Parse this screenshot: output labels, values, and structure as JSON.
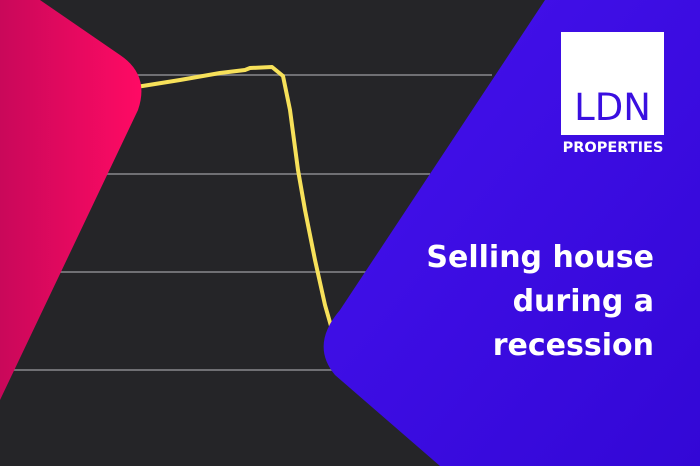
{
  "logo": {
    "mark": "LDN",
    "subtitle": "PROPERTIES"
  },
  "headline": "Selling house during a recession",
  "colors": {
    "background": "#252528",
    "pink": "#f0085e",
    "purple": "#3d0ee6",
    "line": "#f7e15a",
    "grid": "#8a8a8e"
  }
}
